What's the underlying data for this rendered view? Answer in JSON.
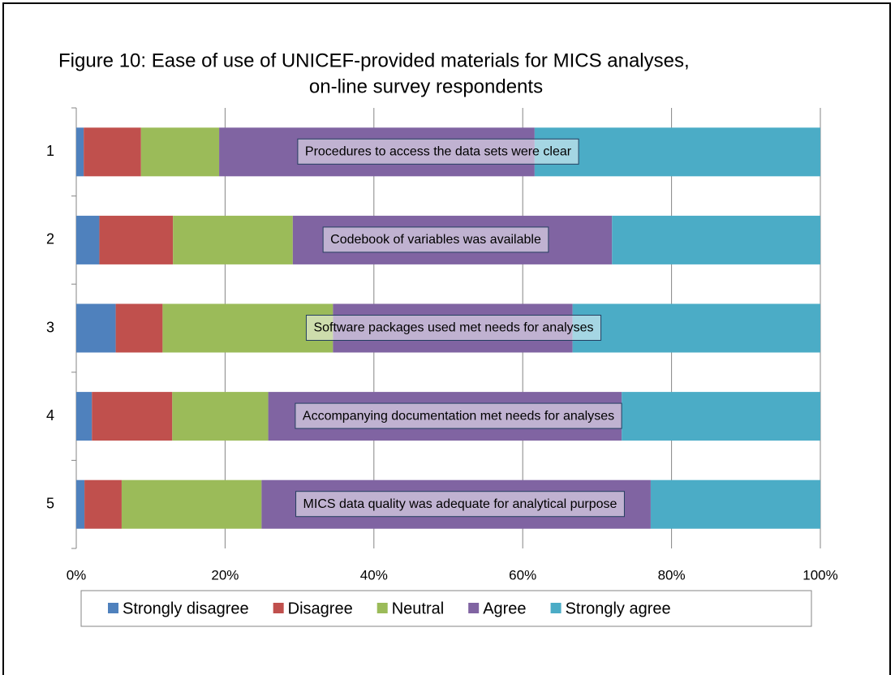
{
  "chart_data": {
    "type": "stacked_bar_horizontal",
    "title": [
      "Figure 10:   Ease of use of UNICEF-provided materials for MICS analyses,",
      "on-line survey respondents"
    ],
    "categories": [
      "1",
      "2",
      "3",
      "4",
      "5"
    ],
    "series": [
      {
        "name": "Strongly disagree",
        "color": "#4f81bd",
        "values": [
          1.0,
          3.1,
          5.3,
          2.1,
          1.1
        ]
      },
      {
        "name": "Disagree",
        "color": "#c0504d",
        "values": [
          7.7,
          9.9,
          6.3,
          10.8,
          5.0
        ]
      },
      {
        "name": "Neutral",
        "color": "#9bbb59",
        "values": [
          10.5,
          16.1,
          22.9,
          12.9,
          18.8
        ]
      },
      {
        "name": "Agree",
        "color": "#8064a2",
        "values": [
          42.4,
          42.9,
          32.2,
          47.5,
          52.3
        ]
      },
      {
        "name": "Strongly agree",
        "color": "#4bacc6",
        "values": [
          38.4,
          28.0,
          33.3,
          26.7,
          22.8
        ]
      }
    ],
    "annotations": [
      "Procedures to access the data sets were clear",
      "Codebook of variables was available",
      "Software packages used met needs for analyses",
      "Accompanying documentation met needs for analyses",
      "MICS data quality was adequate for analytical purpose"
    ],
    "xlim": [
      0,
      100
    ],
    "xticks": [
      {
        "value": 0,
        "label": "0%"
      },
      {
        "value": 20,
        "label": "20%"
      },
      {
        "value": 40,
        "label": "40%"
      },
      {
        "value": 60,
        "label": "60%"
      },
      {
        "value": 80,
        "label": "80%"
      },
      {
        "value": 100,
        "label": "100%"
      }
    ],
    "grid": true,
    "legend": "bottom"
  }
}
